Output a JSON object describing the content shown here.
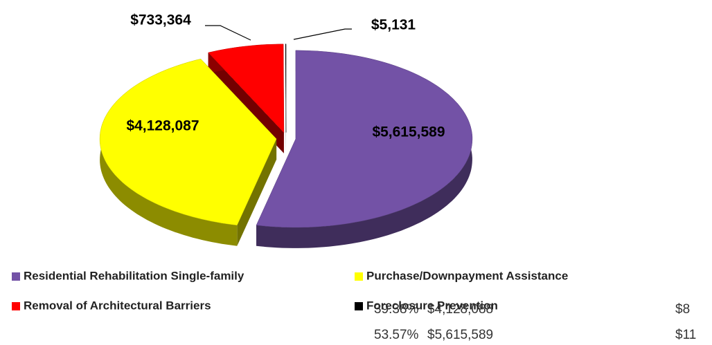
{
  "chart_data": {
    "type": "pie",
    "categories": [
      "Residential Rehabilitation Single-family",
      "Purchase/Downpayment Assistance",
      "Removal of Architectural Barriers",
      "Foreclosure Prevention"
    ],
    "values": [
      5615589,
      4128087,
      733364,
      5131
    ],
    "value_labels": [
      "$5,615,589",
      "$4,128,087",
      "$733,364",
      "$5,131"
    ],
    "colors": [
      "#7352a6",
      "#ffff00",
      "#ff0000",
      "#000000"
    ],
    "legend": "bottom"
  },
  "table": {
    "rows": [
      [
        "39.38%",
        "$4,128,088",
        "$8"
      ],
      [
        "53.57%",
        "$5,615,589",
        "$11"
      ]
    ]
  }
}
